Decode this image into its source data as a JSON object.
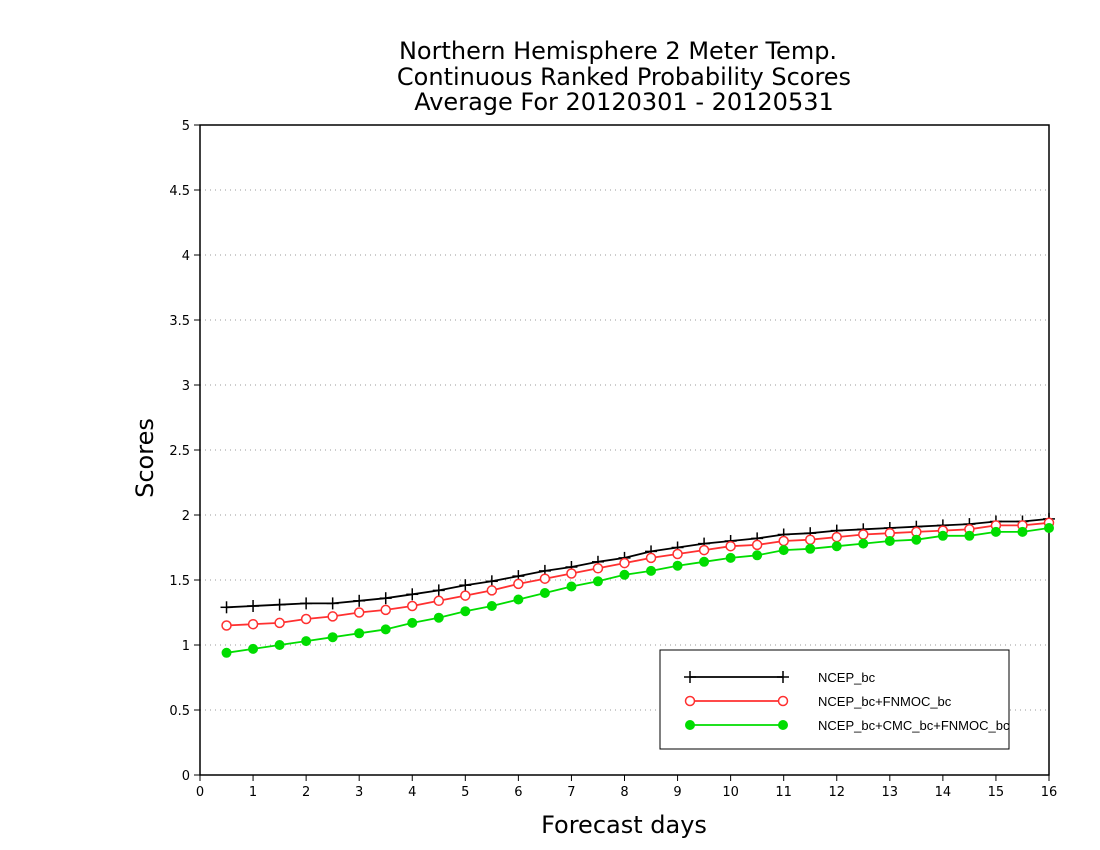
{
  "chart_data": {
    "type": "line",
    "title": [
      "Northern Hemisphere 2 Meter Temp.",
      "Continuous Ranked Probability Scores",
      "Average For 20120301 - 20120531"
    ],
    "xlabel": "Forecast days",
    "ylabel": "Scores",
    "xlim": [
      0,
      16
    ],
    "ylim": [
      0,
      5
    ],
    "xticks": [
      "0",
      "1",
      "2",
      "3",
      "4",
      "5",
      "6",
      "7",
      "8",
      "9",
      "10",
      "11",
      "12",
      "13",
      "14",
      "15",
      "16"
    ],
    "yticks": [
      "0",
      "0.5",
      "1",
      "1.5",
      "2",
      "2.5",
      "3",
      "3.5",
      "4",
      "4.5",
      "5"
    ],
    "grid": "dotted horizontal",
    "legend_position": "lower-right",
    "x": [
      0.5,
      1,
      1.5,
      2,
      2.5,
      3,
      3.5,
      4,
      4.5,
      5,
      5.5,
      6,
      6.5,
      7,
      7.5,
      8,
      8.5,
      9,
      9.5,
      10,
      10.5,
      11,
      11.5,
      12,
      12.5,
      13,
      13.5,
      14,
      14.5,
      15,
      15.5,
      16
    ],
    "series": [
      {
        "name": "NCEP_bc",
        "color": "#000000",
        "marker": "plus",
        "values": [
          1.29,
          1.3,
          1.31,
          1.32,
          1.32,
          1.34,
          1.36,
          1.39,
          1.42,
          1.46,
          1.49,
          1.53,
          1.57,
          1.6,
          1.64,
          1.67,
          1.72,
          1.75,
          1.78,
          1.8,
          1.82,
          1.85,
          1.86,
          1.88,
          1.89,
          1.9,
          1.91,
          1.92,
          1.93,
          1.95,
          1.95,
          1.97
        ]
      },
      {
        "name": "NCEP_bc+FNMOC_bc",
        "color": "#ff3030",
        "marker": "open-circle",
        "values": [
          1.15,
          1.16,
          1.17,
          1.2,
          1.22,
          1.25,
          1.27,
          1.3,
          1.34,
          1.38,
          1.42,
          1.47,
          1.51,
          1.55,
          1.59,
          1.63,
          1.67,
          1.7,
          1.73,
          1.76,
          1.77,
          1.8,
          1.81,
          1.83,
          1.85,
          1.86,
          1.87,
          1.88,
          1.89,
          1.92,
          1.92,
          1.94
        ]
      },
      {
        "name": "NCEP_bc+CMC_bc+FNMOC_bc",
        "color": "#00dd00",
        "marker": "filled-circle",
        "values": [
          0.94,
          0.97,
          1.0,
          1.03,
          1.06,
          1.09,
          1.12,
          1.17,
          1.21,
          1.26,
          1.3,
          1.35,
          1.4,
          1.45,
          1.49,
          1.54,
          1.57,
          1.61,
          1.64,
          1.67,
          1.69,
          1.73,
          1.74,
          1.76,
          1.78,
          1.8,
          1.81,
          1.84,
          1.84,
          1.87,
          1.87,
          1.9
        ]
      }
    ]
  }
}
